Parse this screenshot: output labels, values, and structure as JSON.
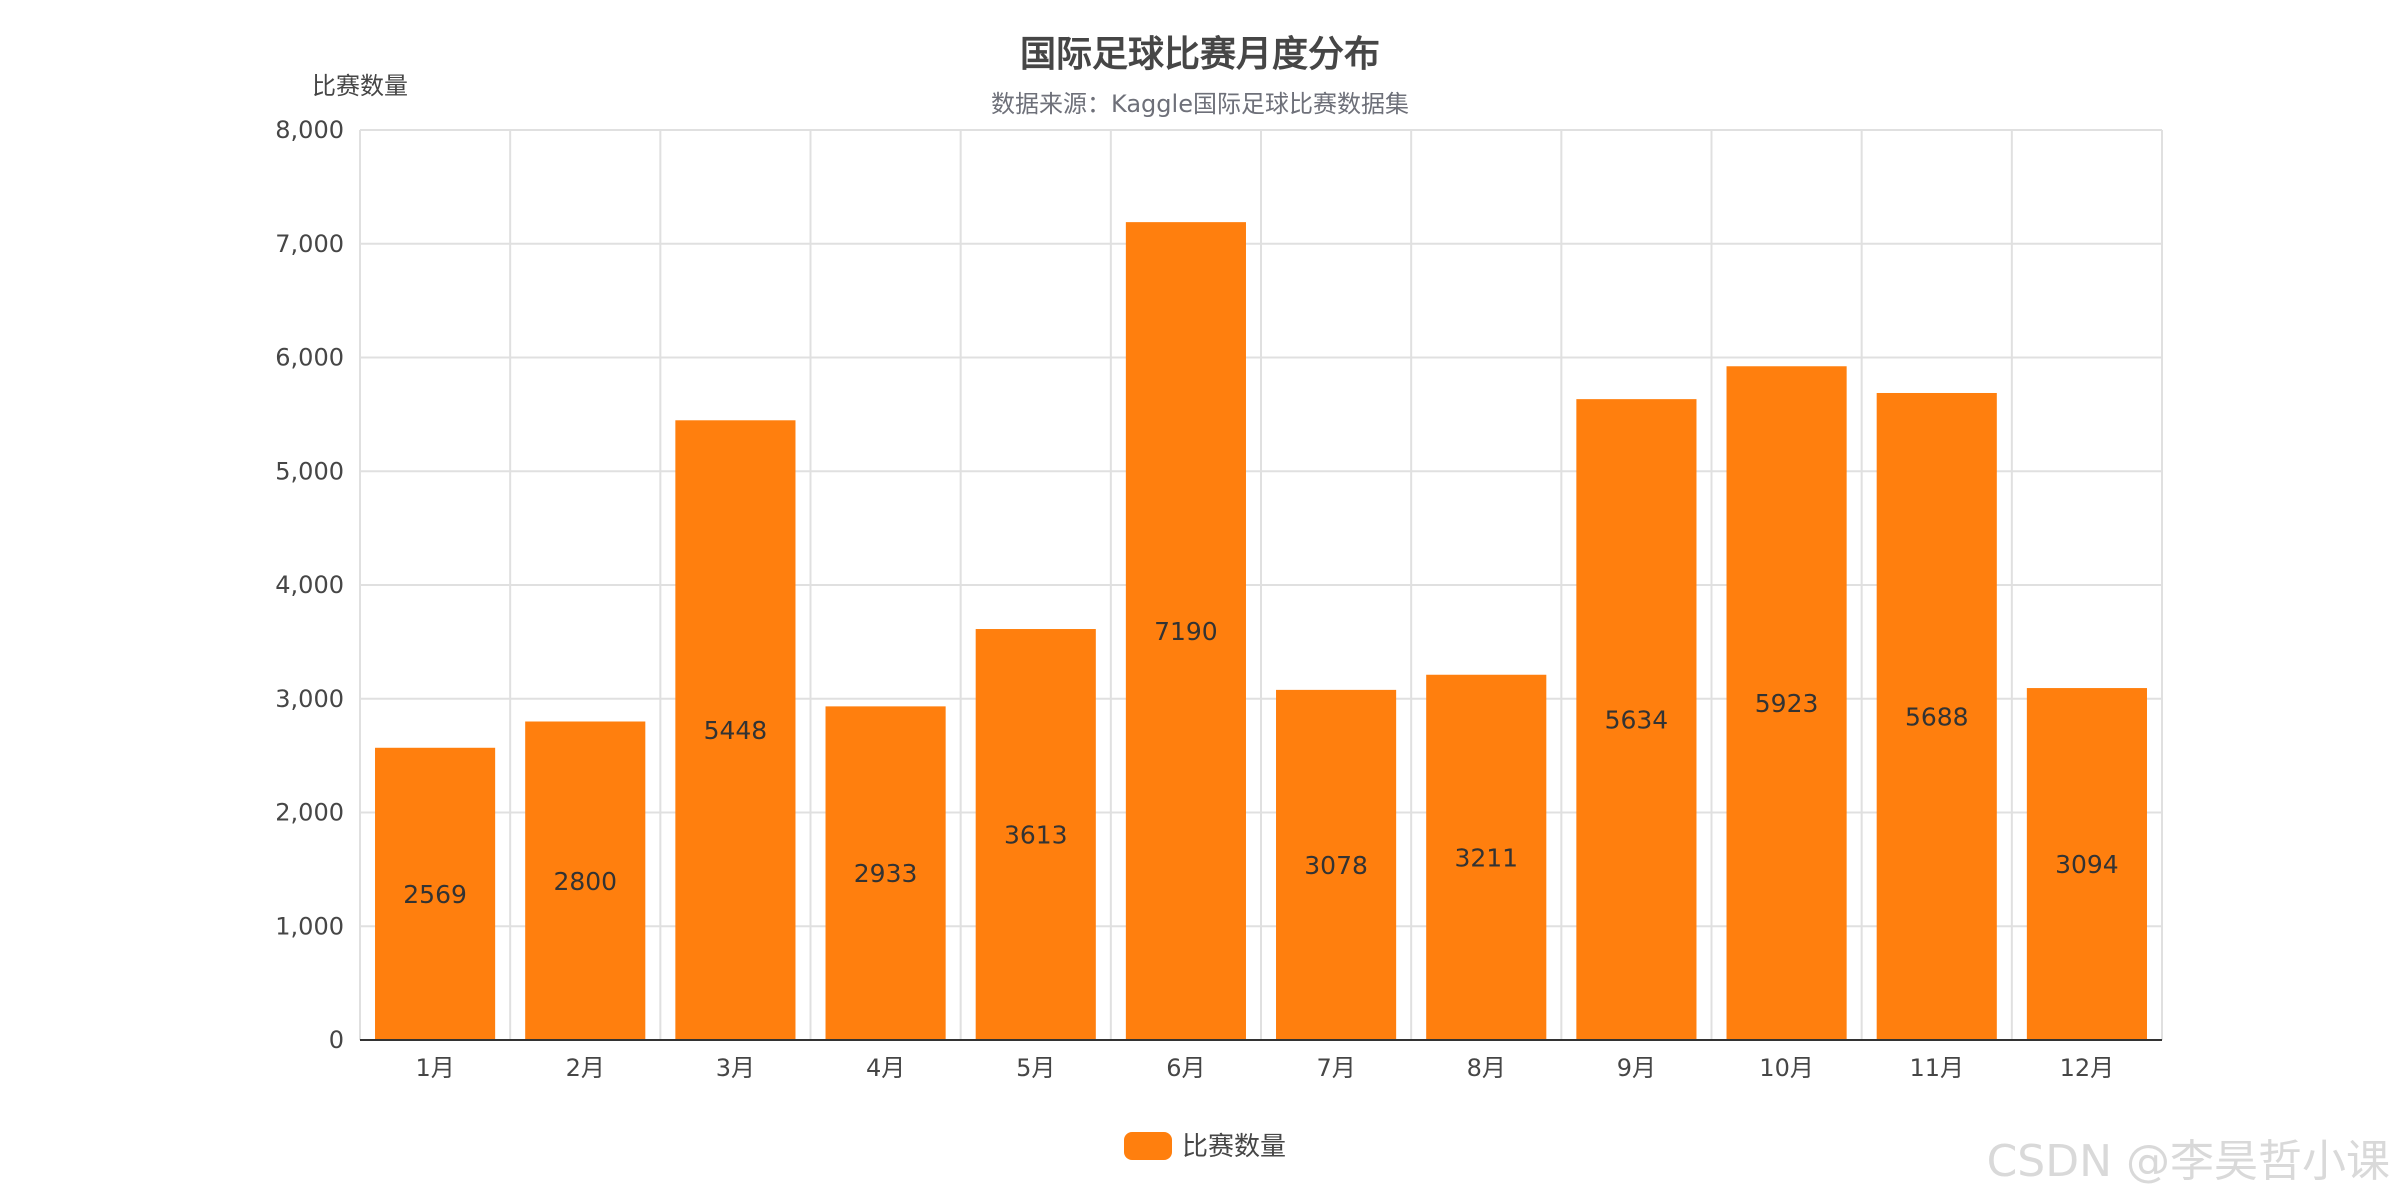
{
  "chart_data": {
    "type": "bar",
    "title": "国际足球比赛月度分布",
    "subtitle": "数据来源：Kaggle国际足球比赛数据集",
    "xlabel": "",
    "ylabel": "比赛数量",
    "ylim": [
      0,
      8000
    ],
    "yticks": [
      0,
      1000,
      2000,
      3000,
      4000,
      5000,
      6000,
      7000,
      8000
    ],
    "ytick_labels": [
      "0",
      "1,000",
      "2,000",
      "3,000",
      "4,000",
      "5,000",
      "6,000",
      "7,000",
      "8,000"
    ],
    "categories": [
      "1月",
      "2月",
      "3月",
      "4月",
      "5月",
      "6月",
      "7月",
      "8月",
      "9月",
      "10月",
      "11月",
      "12月"
    ],
    "series": [
      {
        "name": "比赛数量",
        "color": "#ff7f0e",
        "values": [
          2569,
          2800,
          5448,
          2933,
          3613,
          7190,
          3078,
          3211,
          5634,
          5923,
          5688,
          3094
        ]
      }
    ],
    "grid": true,
    "legend": "bottom-center"
  },
  "watermark": "CSDN @李昊哲小课"
}
